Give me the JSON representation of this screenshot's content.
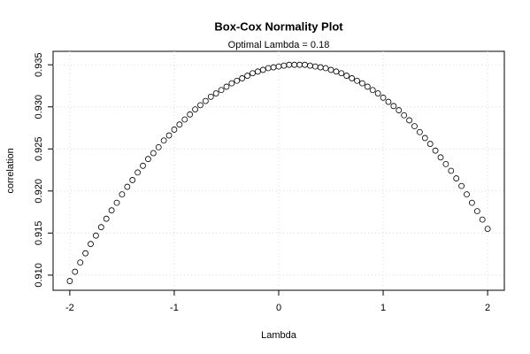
{
  "chart_data": {
    "type": "scatter",
    "title": "Box-Cox Normality Plot",
    "subtitle": "Optimal Lambda = 0.18",
    "x_label": "Lambda",
    "y_label": "correlation",
    "color": "#000000",
    "grid": true,
    "xlim": [
      -2.16,
      2.16
    ],
    "ylim": [
      0.9082,
      0.9366
    ],
    "xticks": [
      -2,
      -1,
      0,
      1,
      2
    ],
    "yticks": [
      {
        "value": 0.91,
        "label": "0.910"
      },
      {
        "value": 0.915,
        "label": "0.915"
      },
      {
        "value": 0.92,
        "label": "0.920"
      },
      {
        "value": 0.925,
        "label": "0.925"
      },
      {
        "value": 0.93,
        "label": "0.930"
      },
      {
        "value": 0.935,
        "label": "0.935"
      }
    ],
    "x": [
      -2,
      -1.95,
      -1.9,
      -1.85,
      -1.8,
      -1.75,
      -1.7,
      -1.65,
      -1.6,
      -1.55,
      -1.5,
      -1.45,
      -1.4,
      -1.35,
      -1.3,
      -1.25,
      -1.2,
      -1.15,
      -1.1,
      -1.05,
      -1,
      -0.95,
      -0.9,
      -0.85,
      -0.8,
      -0.75,
      -0.7,
      -0.65,
      -0.6,
      -0.55,
      -0.5,
      -0.45,
      -0.4,
      -0.35,
      -0.3,
      -0.25,
      -0.2,
      -0.15,
      -0.1,
      -0.05,
      0,
      0.05,
      0.1,
      0.15,
      0.2,
      0.25,
      0.3,
      0.35,
      0.4,
      0.45,
      0.5,
      0.55,
      0.6,
      0.65,
      0.7,
      0.75,
      0.8,
      0.85,
      0.9,
      0.95,
      1,
      1.05,
      1.1,
      1.15,
      1.2,
      1.25,
      1.3,
      1.35,
      1.4,
      1.45,
      1.5,
      1.55,
      1.6,
      1.65,
      1.7,
      1.75,
      1.8,
      1.85,
      1.9,
      1.95,
      2
    ],
    "values": [
      0.9093,
      0.9104,
      0.9115,
      0.9126,
      0.9137,
      0.9147,
      0.9157,
      0.9167,
      0.9177,
      0.9186,
      0.9196,
      0.9205,
      0.9213,
      0.9222,
      0.923,
      0.9238,
      0.9245,
      0.9252,
      0.926,
      0.9266,
      0.9273,
      0.9279,
      0.9285,
      0.9291,
      0.9297,
      0.9302,
      0.9307,
      0.9312,
      0.9316,
      0.932,
      0.9324,
      0.9328,
      0.9331,
      0.9334,
      0.9337,
      0.934,
      0.9342,
      0.9344,
      0.9346,
      0.9347,
      0.9348,
      0.9349,
      0.935,
      0.935,
      0.935,
      0.935,
      0.9349,
      0.9348,
      0.9347,
      0.9346,
      0.9344,
      0.9342,
      0.934,
      0.9337,
      0.9334,
      0.9331,
      0.9328,
      0.9324,
      0.932,
      0.9316,
      0.9311,
      0.9306,
      0.9301,
      0.9296,
      0.929,
      0.9284,
      0.9277,
      0.927,
      0.9263,
      0.9256,
      0.9248,
      0.924,
      0.9232,
      0.9224,
      0.9215,
      0.9206,
      0.9196,
      0.9186,
      0.9176,
      0.9166,
      0.9155
    ]
  }
}
